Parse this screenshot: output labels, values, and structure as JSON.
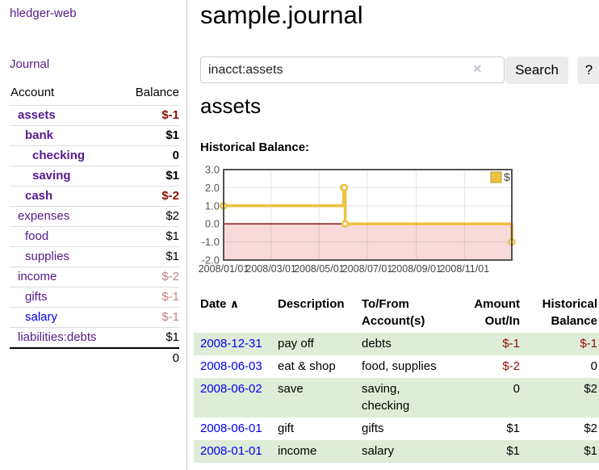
{
  "colors": {
    "link_purple": "#551A8B",
    "link_blue": "#0000EE",
    "negative_strong": "#8B0F00",
    "negative_muted": "#C08383",
    "row_shade_green": "#DFEDD8",
    "chart_line_gold": "#EDC240",
    "chart_negative_fill": "#F9DADA",
    "chart_zero_line": "#7A0000",
    "plot_border": "#545454"
  },
  "sidebar": {
    "app_title": "hledger-web",
    "journal_link": "Journal",
    "accounts": {
      "header_account": "Account",
      "header_balance": "Balance",
      "rows": [
        {
          "name": "assets",
          "depth": 0,
          "bold": true,
          "balance": "$-1",
          "neg": "strong"
        },
        {
          "name": "bank",
          "depth": 1,
          "bold": true,
          "balance": "$1",
          "neg": "none"
        },
        {
          "name": "checking",
          "depth": 2,
          "bold": true,
          "balance": "0",
          "neg": "none"
        },
        {
          "name": "saving",
          "depth": 2,
          "bold": true,
          "balance": "$1",
          "neg": "none"
        },
        {
          "name": "cash",
          "depth": 1,
          "bold": true,
          "balance": "$-2",
          "neg": "strong"
        },
        {
          "name": "expenses",
          "depth": 0,
          "bold": false,
          "balance": "$2",
          "neg": "none"
        },
        {
          "name": "food",
          "depth": 1,
          "bold": false,
          "balance": "$1",
          "neg": "none"
        },
        {
          "name": "supplies",
          "depth": 1,
          "bold": false,
          "balance": "$1",
          "neg": "none"
        },
        {
          "name": "income",
          "depth": 0,
          "bold": false,
          "balance": "$-2",
          "neg": "muted"
        },
        {
          "name": "gifts",
          "depth": 1,
          "bold": false,
          "balance": "$-1",
          "neg": "muted"
        },
        {
          "name": "salary",
          "depth": 1,
          "bold": false,
          "balance": "$-1",
          "neg": "muted",
          "link_color": "blue"
        },
        {
          "name": "liabilities:debts",
          "depth": 0,
          "bold": false,
          "balance": "$1",
          "neg": "none"
        }
      ],
      "total": "0"
    }
  },
  "main": {
    "title": "sample.journal",
    "search": {
      "value": "inacct:assets",
      "clear_icon": "×",
      "search_button": "Search",
      "help_button": "?"
    },
    "account_heading": "assets",
    "chart_title": "Historical Balance:"
  },
  "chart_data": {
    "type": "line",
    "steps": true,
    "title": "Historical Balance:",
    "ylim": [
      -2,
      3
    ],
    "xlim_days": [
      0,
      365
    ],
    "grid": true,
    "zero_line": true,
    "legend": {
      "position": "top-right",
      "label": "$"
    },
    "y_ticks": [
      {
        "value": 3,
        "label": "3.0"
      },
      {
        "value": 2,
        "label": "2.0"
      },
      {
        "value": 1,
        "label": "1.0"
      },
      {
        "value": 0,
        "label": "0.0"
      },
      {
        "value": -1,
        "label": "-1.0"
      },
      {
        "value": -2,
        "label": "-2.0"
      }
    ],
    "x_ticks": [
      {
        "day": 0,
        "label": "2008/01/01"
      },
      {
        "day": 60,
        "label": "2008/03/01"
      },
      {
        "day": 121,
        "label": "2008/05/01"
      },
      {
        "day": 182,
        "label": "2008/07/01"
      },
      {
        "day": 244,
        "label": "2008/09/01"
      },
      {
        "day": 305,
        "label": "2008/11/01"
      }
    ],
    "series": [
      {
        "name": "$",
        "color": "#EDC240",
        "points": [
          {
            "date": "2008-01-01",
            "day": 0,
            "value": 1
          },
          {
            "date": "2008-06-01",
            "day": 152,
            "value": 2
          },
          {
            "date": "2008-06-02",
            "day": 153,
            "value": 2
          },
          {
            "date": "2008-06-03",
            "day": 154,
            "value": 0
          },
          {
            "date": "2008-12-31",
            "day": 365,
            "value": -1
          }
        ]
      }
    ]
  },
  "transactions": {
    "headers": {
      "date": "Date",
      "sort_icon": "∧",
      "description": "Description",
      "accounts": "To/From Account(s)",
      "amount": "Amount Out/In",
      "balance": "Historical Balance"
    },
    "rows": [
      {
        "date": "2008-12-31",
        "description": "pay off",
        "accounts": "debts",
        "amount": "$-1",
        "amount_neg": true,
        "balance": "$-1",
        "balance_neg": true,
        "shaded": true
      },
      {
        "date": "2008-06-03",
        "description": "eat & shop",
        "accounts": "food, supplies",
        "amount": "$-2",
        "amount_neg": true,
        "balance": "0",
        "balance_neg": false,
        "shaded": false
      },
      {
        "date": "2008-06-02",
        "description": "save",
        "accounts": "saving, checking",
        "amount": "0",
        "amount_neg": false,
        "balance": "$2",
        "balance_neg": false,
        "shaded": true
      },
      {
        "date": "2008-06-01",
        "description": "gift",
        "accounts": "gifts",
        "amount": "$1",
        "amount_neg": false,
        "balance": "$2",
        "balance_neg": false,
        "shaded": false
      },
      {
        "date": "2008-01-01",
        "description": "income",
        "accounts": "salary",
        "amount": "$1",
        "amount_neg": false,
        "balance": "$1",
        "balance_neg": false,
        "shaded": true
      }
    ]
  }
}
